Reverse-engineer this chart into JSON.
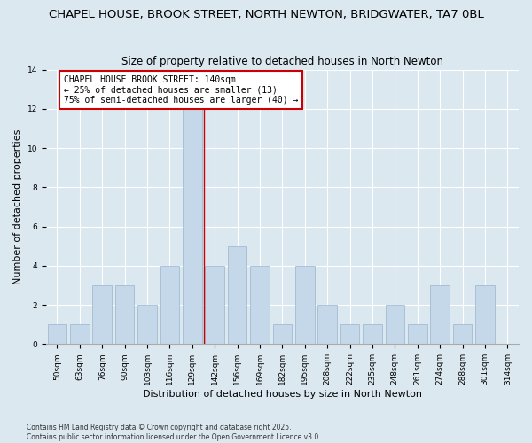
{
  "title": "CHAPEL HOUSE, BROOK STREET, NORTH NEWTON, BRIDGWATER, TA7 0BL",
  "subtitle": "Size of property relative to detached houses in North Newton",
  "xlabel": "Distribution of detached houses by size in North Newton",
  "ylabel": "Number of detached properties",
  "categories": [
    "50sqm",
    "63sqm",
    "76sqm",
    "90sqm",
    "103sqm",
    "116sqm",
    "129sqm",
    "142sqm",
    "156sqm",
    "169sqm",
    "182sqm",
    "195sqm",
    "208sqm",
    "222sqm",
    "235sqm",
    "248sqm",
    "261sqm",
    "274sqm",
    "288sqm",
    "301sqm",
    "314sqm"
  ],
  "values": [
    1,
    1,
    3,
    3,
    2,
    4,
    12,
    4,
    5,
    4,
    1,
    4,
    2,
    1,
    1,
    2,
    1,
    3,
    1,
    3,
    0
  ],
  "bar_color": "#c5d8ea",
  "bar_edge_color": "#9ab4cc",
  "vline_index": 6,
  "vline_color": "#cc0000",
  "annotation_text": "CHAPEL HOUSE BROOK STREET: 140sqm\n← 25% of detached houses are smaller (13)\n75% of semi-detached houses are larger (40) →",
  "annotation_box_color": "#ffffff",
  "annotation_box_edge": "#cc0000",
  "ylim": [
    0,
    14
  ],
  "yticks": [
    0,
    2,
    4,
    6,
    8,
    10,
    12,
    14
  ],
  "fig_bg_color": "#dce8f0",
  "plot_bg_color": "#dce8f0",
  "footer_text": "Contains HM Land Registry data © Crown copyright and database right 2025.\nContains public sector information licensed under the Open Government Licence v3.0.",
  "title_fontsize": 9.5,
  "subtitle_fontsize": 8.5,
  "axis_label_fontsize": 8,
  "tick_fontsize": 6.5,
  "annotation_fontsize": 7,
  "footer_fontsize": 5.5
}
